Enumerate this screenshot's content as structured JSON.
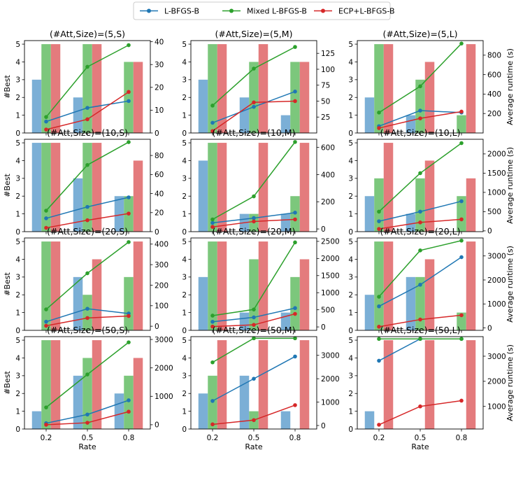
{
  "legend": [
    {
      "name": "L-BFGS-B",
      "color": "#1f77b4"
    },
    {
      "name": "Mixed L-BFGS-B",
      "color": "#2ca02c"
    },
    {
      "name": "ECP+L-BFGS-B",
      "color": "#d62728"
    }
  ],
  "colors": {
    "bar_blue": "#7bafd6",
    "bar_green": "#7cc77c",
    "bar_red": "#e47b7d"
  },
  "chart_data": [
    {
      "type": "bar+line",
      "title": "(#Att,Size)=(5,S)",
      "categories": [
        "0.2",
        "0.5",
        "0.8"
      ],
      "best": {
        "L-BFGS-B": [
          3,
          2,
          0
        ],
        "Mixed L-BFGS-B": [
          5,
          5,
          4
        ],
        "ECP+L-BFGS-B": [
          5,
          5,
          4
        ]
      },
      "runtime": {
        "L-BFGS-B": [
          5,
          11,
          14
        ],
        "Mixed L-BFGS-B": [
          7,
          29,
          38.5
        ],
        "ECP+L-BFGS-B": [
          1.5,
          6,
          18
        ]
      },
      "ylim": [
        0,
        5.2
      ],
      "ylim2": [
        0,
        40.5
      ],
      "yticks2": [
        0,
        10,
        20,
        30,
        40
      ],
      "yticks2_labels": [
        "0",
        "10",
        "20",
        "30",
        "40"
      ],
      "ylabel": "#Best",
      "ylabel2": "",
      "xlabel": ""
    },
    {
      "type": "bar+line",
      "title": "(#Att,Size)=(5,M)",
      "categories": [
        "0.2",
        "0.5",
        "0.8"
      ],
      "best": {
        "L-BFGS-B": [
          3,
          2,
          1
        ],
        "Mixed L-BFGS-B": [
          5,
          4,
          4
        ],
        "ECP+L-BFGS-B": [
          5,
          5,
          4
        ]
      },
      "runtime": {
        "L-BFGS-B": [
          16,
          41,
          65
        ],
        "Mixed L-BFGS-B": [
          43,
          101,
          135
        ],
        "ECP+L-BFGS-B": [
          3,
          48,
          50
        ]
      },
      "ylim": [
        0,
        5.2
      ],
      "ylim2": [
        0,
        145
      ],
      "yticks2": [
        25,
        50,
        75,
        100,
        125
      ],
      "yticks2_labels": [
        "25",
        "50",
        "75",
        "100",
        "125"
      ],
      "ylabel": "",
      "ylabel2": "",
      "xlabel": ""
    },
    {
      "type": "bar+line",
      "title": "(#Att,Size)=(5,L)",
      "categories": [
        "0.2",
        "0.5",
        "0.8"
      ],
      "best": {
        "L-BFGS-B": [
          2,
          1,
          0
        ],
        "Mixed L-BFGS-B": [
          5,
          3,
          1
        ],
        "ECP+L-BFGS-B": [
          5,
          4,
          5
        ]
      },
      "runtime": {
        "L-BFGS-B": [
          70,
          230,
          210
        ],
        "Mixed L-BFGS-B": [
          210,
          480,
          920
        ],
        "ECP+L-BFGS-B": [
          50,
          150,
          220
        ]
      },
      "ylim": [
        0,
        5.2
      ],
      "ylim2": [
        0,
        950
      ],
      "yticks2": [
        200,
        400,
        600,
        800
      ],
      "yticks2_labels": [
        "200",
        "400",
        "600",
        "800"
      ],
      "ylabel": "",
      "ylabel2": "Average runtime (s)",
      "xlabel": ""
    },
    {
      "type": "bar+line",
      "title": "(#Att,Size)=(10,S)",
      "categories": [
        "0.2",
        "0.5",
        "0.8"
      ],
      "best": {
        "L-BFGS-B": [
          5,
          3,
          2
        ],
        "Mixed L-BFGS-B": [
          5,
          5,
          2
        ],
        "ECP+L-BFGS-B": [
          5,
          5,
          4
        ]
      },
      "runtime": {
        "L-BFGS-B": [
          14,
          26,
          36
        ],
        "Mixed L-BFGS-B": [
          22,
          70,
          94
        ],
        "ECP+L-BFGS-B": [
          4,
          12,
          19
        ]
      },
      "ylim": [
        0,
        5.2
      ],
      "ylim2": [
        0,
        97
      ],
      "yticks2": [
        0,
        20,
        40,
        60,
        80
      ],
      "yticks2_labels": [
        "0",
        "20",
        "40",
        "60",
        "80"
      ],
      "ylabel": "#Best",
      "ylabel2": "",
      "xlabel": ""
    },
    {
      "type": "bar+line",
      "title": "(#Att,Size)=(10,M)",
      "categories": [
        "0.2",
        "0.5",
        "0.8"
      ],
      "best": {
        "L-BFGS-B": [
          4,
          1,
          1
        ],
        "Mixed L-BFGS-B": [
          5,
          1,
          2
        ],
        "ECP+L-BFGS-B": [
          5,
          5,
          5
        ]
      },
      "runtime": {
        "L-BFGS-B": [
          45,
          80,
          120
        ],
        "Mixed L-BFGS-B": [
          70,
          240,
          640
        ],
        "ECP+L-BFGS-B": [
          15,
          55,
          70
        ]
      },
      "ylim": [
        0,
        5.2
      ],
      "ylim2": [
        -20,
        660
      ],
      "yticks2": [
        0,
        200,
        400,
        600
      ],
      "yticks2_labels": [
        "0",
        "200",
        "400",
        "600"
      ],
      "ylabel": "",
      "ylabel2": "",
      "xlabel": ""
    },
    {
      "type": "bar+line",
      "title": "(#Att,Size)=(10,L)",
      "categories": [
        "0.2",
        "0.5",
        "0.8"
      ],
      "best": {
        "L-BFGS-B": [
          2,
          1,
          0
        ],
        "Mixed L-BFGS-B": [
          3,
          3,
          2
        ],
        "ECP+L-BFGS-B": [
          5,
          4,
          3
        ]
      },
      "runtime": {
        "L-BFGS-B": [
          250,
          500,
          770
        ],
        "Mixed L-BFGS-B": [
          500,
          1500,
          2280
        ],
        "ECP+L-BFGS-B": [
          50,
          220,
          300
        ]
      },
      "ylim": [
        0,
        5.2
      ],
      "ylim2": [
        -20,
        2380
      ],
      "yticks2": [
        0,
        500,
        1000,
        1500,
        2000
      ],
      "yticks2_labels": [
        "0",
        "500",
        "1000",
        "1500",
        "2000"
      ],
      "ylabel": "",
      "ylabel2": "Average runtime (s)",
      "xlabel": ""
    },
    {
      "type": "bar+line",
      "title": "(#Att,Size)=(20,S)",
      "categories": [
        "0.2",
        "0.5",
        "0.8"
      ],
      "best": {
        "L-BFGS-B": [
          0,
          3,
          0
        ],
        "Mixed L-BFGS-B": [
          5,
          2,
          3
        ],
        "ECP+L-BFGS-B": [
          5,
          4,
          5
        ]
      },
      "runtime": {
        "L-BFGS-B": [
          22,
          85,
          62
        ],
        "Mixed L-BFGS-B": [
          82,
          258,
          410
        ],
        "ECP+L-BFGS-B": [
          2,
          40,
          50
        ]
      },
      "ylim": [
        0,
        5.2
      ],
      "ylim2": [
        -20,
        430
      ],
      "yticks2": [
        0,
        100,
        200,
        300,
        400
      ],
      "yticks2_labels": [
        "0",
        "100",
        "200",
        "300",
        "400"
      ],
      "ylabel": "#Best",
      "ylabel2": "",
      "xlabel": ""
    },
    {
      "type": "bar+line",
      "title": "(#Att,Size)=(20,M)",
      "categories": [
        "0.2",
        "0.5",
        "0.8"
      ],
      "best": {
        "L-BFGS-B": [
          3,
          1,
          1
        ],
        "Mixed L-BFGS-B": [
          5,
          4,
          3
        ],
        "ECP+L-BFGS-B": [
          5,
          5,
          4
        ]
      },
      "runtime": {
        "L-BFGS-B": [
          150,
          280,
          550
        ],
        "Mixed L-BFGS-B": [
          330,
          510,
          2470
        ],
        "ECP+L-BFGS-B": [
          10,
          60,
          380
        ]
      },
      "ylim": [
        0,
        5.2
      ],
      "ylim2": [
        -100,
        2600
      ],
      "yticks2": [
        0,
        500,
        1000,
        1500,
        2000,
        2500
      ],
      "yticks2_labels": [
        "0",
        "500",
        "1000",
        "1500",
        "2000",
        "2500"
      ],
      "ylabel": "",
      "ylabel2": "",
      "xlabel": ""
    },
    {
      "type": "bar+line",
      "title": "(#Att,Size)=(20,L)",
      "categories": [
        "0.2",
        "0.5",
        "0.8"
      ],
      "best": {
        "L-BFGS-B": [
          2,
          3,
          0
        ],
        "Mixed L-BFGS-B": [
          5,
          3,
          1
        ],
        "ECP+L-BFGS-B": [
          5,
          4,
          5
        ]
      },
      "runtime": {
        "L-BFGS-B": [
          900,
          1800,
          2950
        ],
        "Mixed L-BFGS-B": [
          1300,
          3230,
          3640
        ],
        "ECP+L-BFGS-B": [
          50,
          350,
          530
        ]
      },
      "ylim": [
        0,
        5.2
      ],
      "ylim2": [
        -100,
        3750
      ],
      "yticks2": [
        0,
        1000,
        2000,
        3000
      ],
      "yticks2_labels": [
        "0",
        "1000",
        "2000",
        "3000"
      ],
      "ylabel": "",
      "ylabel2": "Average runtime (s)",
      "xlabel": ""
    },
    {
      "type": "bar+line",
      "title": "(#Att,Size)=(50,S)",
      "categories": [
        "0.2",
        "0.5",
        "0.8"
      ],
      "best": {
        "L-BFGS-B": [
          1,
          3,
          2
        ],
        "Mixed L-BFGS-B": [
          5,
          4,
          3
        ],
        "ECP+L-BFGS-B": [
          5,
          5,
          4
        ]
      },
      "runtime": {
        "L-BFGS-B": [
          55,
          360,
          860
        ],
        "Mixed L-BFGS-B": [
          610,
          1770,
          2900
        ],
        "ECP+L-BFGS-B": [
          0,
          70,
          460
        ]
      },
      "ylim": [
        0,
        5.2
      ],
      "ylim2": [
        -150,
        3100
      ],
      "yticks2": [
        0,
        1000,
        2000,
        3000
      ],
      "yticks2_labels": [
        "0",
        "1000",
        "2000",
        "3000"
      ],
      "ylabel": "#Best",
      "ylabel2": "",
      "xlabel": "Rate"
    },
    {
      "type": "bar+line",
      "title": "(#Att,Size)=(50,M)",
      "categories": [
        "0.2",
        "0.5",
        "0.8"
      ],
      "best": {
        "L-BFGS-B": [
          2,
          3,
          1
        ],
        "Mixed L-BFGS-B": [
          3,
          1,
          0
        ],
        "ECP+L-BFGS-B": [
          5,
          5,
          5
        ]
      },
      "runtime": {
        "L-BFGS-B": [
          1050,
          2000,
          2950
        ],
        "Mixed L-BFGS-B": [
          2700,
          3730,
          3730
        ],
        "ECP+L-BFGS-B": [
          50,
          230,
          870
        ]
      },
      "ylim": [
        0,
        5.2
      ],
      "ylim2": [
        -150,
        3800
      ],
      "yticks2": [
        0,
        1000,
        2000,
        3000
      ],
      "yticks2_labels": [
        "0",
        "1000",
        "2000",
        "3000"
      ],
      "ylabel": "",
      "ylabel2": "",
      "xlabel": "Rate"
    },
    {
      "type": "bar+line",
      "title": "(#Att,Size)=(50,L)",
      "categories": [
        "0.2",
        "0.5",
        "0.8"
      ],
      "best": {
        "L-BFGS-B": [
          1,
          0,
          0
        ],
        "Mixed L-BFGS-B": [
          0,
          0,
          0
        ],
        "ECP+L-BFGS-B": [
          5,
          5,
          5
        ]
      },
      "runtime": {
        "L-BFGS-B": [
          2820,
          3690,
          3690
        ],
        "Mixed L-BFGS-B": [
          3690,
          3690,
          3690
        ],
        "ECP+L-BFGS-B": [
          270,
          1000,
          1230
        ]
      },
      "ylim": [
        0,
        5.2
      ],
      "ylim2": [
        100,
        3780
      ],
      "yticks2": [
        1000,
        2000,
        3000
      ],
      "yticks2_labels": [
        "1000",
        "2000",
        "3000"
      ],
      "ylabel": "",
      "ylabel2": "Average runtime (s)",
      "xlabel": "Rate"
    }
  ],
  "left_ticks": [
    "0",
    "1",
    "2",
    "3",
    "4",
    "5"
  ]
}
